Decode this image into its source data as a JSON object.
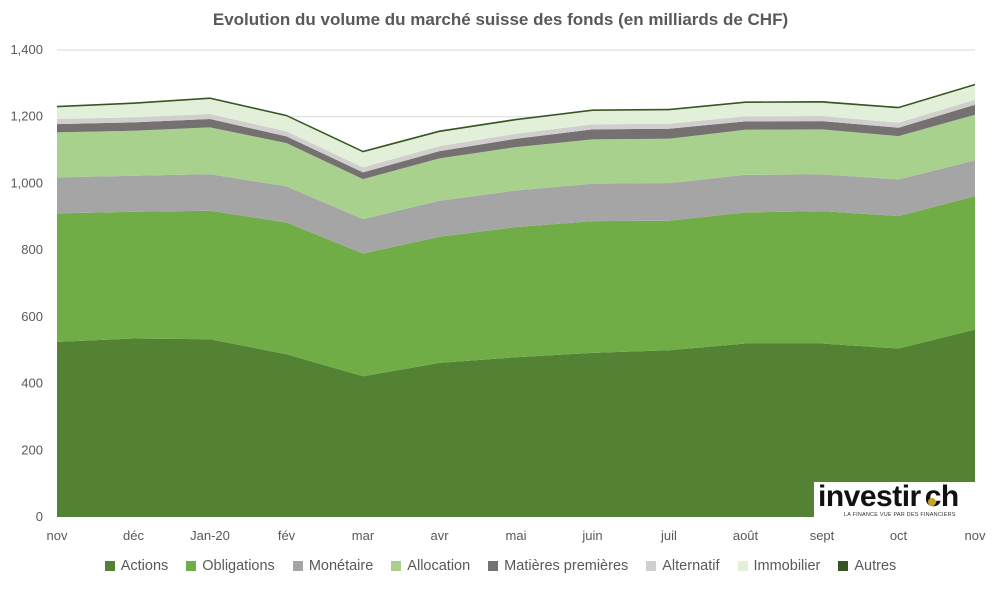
{
  "chart_data": {
    "type": "area",
    "stacked": true,
    "title": "Evolution du volume du marché suisse des fonds (en milliards de CHF)",
    "categories": [
      "nov",
      "déc",
      "Jan-20",
      "fév",
      "mar",
      "avr",
      "mai",
      "juin",
      "juil",
      "août",
      "sept",
      "oct",
      "nov"
    ],
    "ylim": [
      0,
      1400
    ],
    "yticks": [
      "0",
      "200",
      "400",
      "600",
      "800",
      "1,000",
      "1,200",
      "1,400"
    ],
    "ytick_values": [
      0,
      200,
      400,
      600,
      800,
      1000,
      1200,
      1400
    ],
    "grid": true,
    "legend_position": "bottom",
    "series": [
      {
        "name": "Actions",
        "color": "#548235",
        "values": [
          525,
          535,
          533,
          488,
          422,
          462,
          479,
          492,
          500,
          520,
          520,
          505,
          562
        ]
      },
      {
        "name": "Obligations",
        "color": "#70ad47",
        "values": [
          385,
          380,
          385,
          395,
          368,
          378,
          390,
          395,
          388,
          393,
          397,
          397,
          400
        ]
      },
      {
        "name": "Monétaire",
        "color": "#a5a5a5",
        "values": [
          108,
          108,
          110,
          108,
          103,
          108,
          110,
          112,
          113,
          113,
          110,
          110,
          107
        ]
      },
      {
        "name": "Allocation",
        "color": "#a9d18e",
        "values": [
          135,
          135,
          140,
          130,
          120,
          127,
          130,
          133,
          133,
          135,
          135,
          130,
          137
        ]
      },
      {
        "name": "Matières premières",
        "color": "#767171",
        "values": [
          25,
          25,
          25,
          20,
          20,
          22,
          25,
          30,
          30,
          25,
          25,
          25,
          30
        ]
      },
      {
        "name": "Alternatif",
        "color": "#d0cece",
        "values": [
          15,
          15,
          15,
          15,
          15,
          15,
          15,
          15,
          15,
          15,
          15,
          15,
          15
        ]
      },
      {
        "name": "Immobilier",
        "color": "#e2f0d9",
        "values": [
          35,
          40,
          45,
          45,
          45,
          42,
          40,
          40,
          40,
          40,
          40,
          43,
          43
        ]
      },
      {
        "name": "Autres",
        "color": "#375623",
        "values": [
          5,
          5,
          5,
          5,
          5,
          5,
          5,
          5,
          5,
          5,
          5,
          5,
          5
        ]
      }
    ]
  },
  "logo": {
    "text": "investir.ch",
    "tagline": "LA FINANCE VUE PAR DES FINANCIERS",
    "accent_color": "#c9a227"
  }
}
